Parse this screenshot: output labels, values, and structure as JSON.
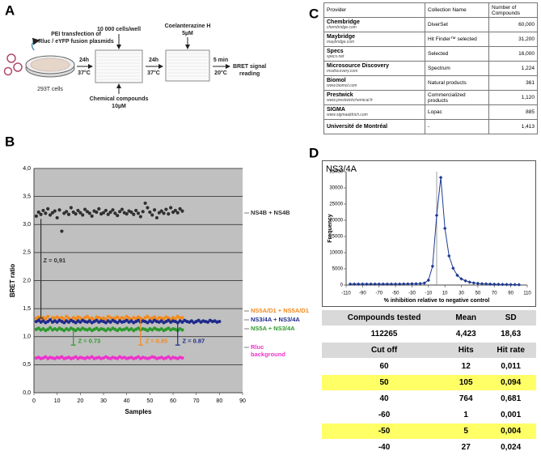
{
  "panels": {
    "a": "A",
    "b": "B",
    "c": "C",
    "d": "D"
  },
  "panel_a": {
    "transfection_1": "PEI transfection of",
    "transfection_2": "Rluc / eYFP fusion plasmids",
    "cells": "293T cells",
    "incubation_1_time": "24h",
    "incubation_1_temp": "37°C",
    "seeding": "10 000 cells/well",
    "compounds": "Chemical compounds",
    "compounds_conc": "10µM",
    "incubation_2_time": "24h",
    "incubation_2_temp": "37°C",
    "substrate": "Coelanterazine H",
    "substrate_conc": "5µM",
    "reading_time": "5 min",
    "reading_temp": "20°C",
    "reading_1": "BRET signal",
    "reading_2": "reading"
  },
  "chart_data": [
    {
      "type": "scatter",
      "xlabel": "Samples",
      "ylabel": "BRET ratio",
      "plot_background": "#c0c0c0",
      "grid": true,
      "legend": "right",
      "xlim": [
        0,
        90
      ],
      "xticks": [
        0,
        10,
        20,
        30,
        40,
        50,
        60,
        70,
        80,
        90
      ],
      "ylim": [
        0,
        4
      ],
      "yticks": [
        {
          "value": 0,
          "label": "0,0"
        },
        {
          "value": 0.5,
          "label": "0,5"
        },
        {
          "value": 1,
          "label": "1,0"
        },
        {
          "value": 1.5,
          "label": "1,5"
        },
        {
          "value": 2,
          "label": "2,0"
        },
        {
          "value": 2.5,
          "label": "2,5"
        },
        {
          "value": 3,
          "label": "3,0"
        },
        {
          "value": 3.5,
          "label": "3,5"
        },
        {
          "value": 4,
          "label": "4,0"
        }
      ],
      "x": [
        1,
        2,
        3,
        4,
        5,
        6,
        7,
        8,
        9,
        10,
        11,
        12,
        13,
        14,
        15,
        16,
        17,
        18,
        19,
        20,
        21,
        22,
        23,
        24,
        25,
        26,
        27,
        28,
        29,
        30,
        31,
        32,
        33,
        34,
        35,
        36,
        37,
        38,
        39,
        40,
        41,
        42,
        43,
        44,
        45,
        46,
        47,
        48,
        49,
        50,
        51,
        52,
        53,
        54,
        55,
        56,
        57,
        58,
        59,
        60,
        61,
        62,
        63,
        64,
        65,
        66,
        67,
        68,
        69,
        70,
        71,
        72,
        73,
        74,
        75,
        76,
        77,
        78,
        79,
        80
      ],
      "series": [
        {
          "name": "NS4B + NS4B",
          "color": "#303030",
          "values": [
            3.15,
            3.22,
            3.18,
            3.25,
            3.2,
            3.28,
            3.17,
            3.21,
            3.24,
            3.12,
            3.26,
            2.88,
            3.2,
            3.23,
            3.18,
            3.3,
            3.22,
            3.19,
            3.25,
            3.21,
            3.17,
            3.27,
            3.23,
            3.2,
            3.15,
            3.24,
            3.22,
            3.28,
            3.19,
            3.21,
            3.25,
            3.18,
            3.22,
            3.26,
            3.2,
            3.16,
            3.23,
            3.27,
            3.21,
            3.19,
            3.24,
            3.22,
            3.18,
            3.25,
            3.2,
            3.14,
            3.23,
            3.38,
            3.3,
            3.22,
            3.17,
            3.26,
            3.12,
            3.21,
            3.24,
            3.2,
            3.27,
            3.19,
            3.3,
            3.22,
            3.25,
            3.21,
            3.28,
            3.24,
            null,
            null,
            null,
            null,
            null,
            null,
            null,
            null,
            null,
            null,
            null,
            null,
            null,
            null,
            null,
            null
          ]
        },
        {
          "name": "NS5A/D1 + NS5A/D1",
          "color": "#f28a1e",
          "values": [
            1.33,
            1.35,
            1.31,
            1.34,
            1.32,
            1.36,
            1.3,
            1.34,
            1.33,
            1.35,
            1.32,
            1.34,
            1.31,
            1.36,
            1.33,
            1.3,
            1.34,
            1.32,
            1.35,
            1.33,
            1.31,
            1.34,
            1.36,
            1.32,
            1.33,
            1.3,
            1.35,
            1.34,
            1.32,
            1.33,
            1.31,
            1.36,
            1.34,
            1.32,
            1.33,
            1.35,
            1.31,
            1.34,
            1.32,
            1.36,
            1.33,
            1.31,
            1.34,
            1.32,
            1.35,
            1.33,
            1.3,
            1.34,
            1.36,
            1.32,
            1.33,
            1.35,
            1.31,
            1.34,
            1.33,
            1.32,
            1.35,
            1.33,
            1.31,
            1.34,
            1.32,
            1.36,
            1.33,
            1.34,
            null,
            null,
            null,
            null,
            null,
            null,
            null,
            null,
            null,
            null,
            null,
            null,
            null,
            null,
            null,
            null
          ]
        },
        {
          "name": "NS3/4A + NS3/4A",
          "color": "#1f2a8c",
          "values": [
            1.27,
            1.29,
            1.26,
            1.28,
            1.25,
            1.27,
            1.3,
            1.26,
            1.28,
            1.26,
            1.29,
            1.27,
            1.25,
            1.28,
            1.26,
            1.29,
            1.27,
            1.25,
            1.28,
            1.26,
            1.29,
            1.27,
            1.26,
            1.28,
            1.25,
            1.27,
            1.29,
            1.26,
            1.28,
            1.27,
            1.25,
            1.28,
            1.26,
            1.29,
            1.27,
            1.25,
            1.28,
            1.26,
            1.27,
            1.29,
            1.26,
            1.28,
            1.25,
            1.27,
            1.29,
            1.26,
            1.28,
            1.27,
            1.25,
            1.28,
            1.26,
            1.29,
            1.27,
            1.26,
            1.28,
            1.25,
            1.27,
            1.29,
            1.26,
            1.28,
            1.27,
            1.25,
            1.28,
            1.26,
            1.29,
            1.27,
            1.26,
            1.28,
            1.25,
            1.27,
            1.29,
            1.26,
            1.28,
            1.27,
            1.26,
            1.29,
            1.27,
            1.28,
            1.26,
            1.27
          ]
        },
        {
          "name": "NS5A + NS3/4A",
          "color": "#2e9a2e",
          "values": [
            1.13,
            1.15,
            1.12,
            1.14,
            1.11,
            1.13,
            1.16,
            1.12,
            1.14,
            1.12,
            1.15,
            1.13,
            1.11,
            1.14,
            1.12,
            1.15,
            1.13,
            1.11,
            1.14,
            1.12,
            1.15,
            1.13,
            1.12,
            1.14,
            1.11,
            1.13,
            1.15,
            1.12,
            1.14,
            1.13,
            1.11,
            1.14,
            1.12,
            1.15,
            1.13,
            1.11,
            1.14,
            1.12,
            1.13,
            1.15,
            1.12,
            1.14,
            1.11,
            1.13,
            1.15,
            1.12,
            1.14,
            1.13,
            1.11,
            1.14,
            1.12,
            1.15,
            1.13,
            1.12,
            1.14,
            1.11,
            1.13,
            1.15,
            1.12,
            1.14,
            1.13,
            1.11,
            1.14,
            1.12,
            null,
            null,
            null,
            null,
            null,
            null,
            null,
            null,
            null,
            null,
            null,
            null,
            null,
            null,
            null,
            null
          ]
        },
        {
          "name": "Rluc background",
          "color": "#ee33cc",
          "values": [
            0.62,
            0.63,
            0.61,
            0.62,
            0.64,
            0.61,
            0.63,
            0.62,
            0.61,
            0.63,
            0.62,
            0.64,
            0.61,
            0.62,
            0.63,
            0.61,
            0.62,
            0.64,
            0.61,
            0.63,
            0.62,
            0.61,
            0.63,
            0.62,
            0.64,
            0.61,
            0.62,
            0.63,
            0.61,
            0.62,
            0.64,
            0.62,
            0.61,
            0.63,
            0.62,
            0.61,
            0.64,
            0.62,
            0.63,
            0.61,
            0.62,
            0.63,
            0.61,
            0.62,
            0.64,
            0.61,
            0.63,
            0.62,
            0.61,
            0.62,
            0.64,
            0.63,
            0.61,
            0.62,
            0.63,
            0.61,
            0.62,
            0.64,
            0.61,
            0.63,
            0.62,
            0.61,
            0.63,
            0.62,
            null,
            null,
            null,
            null,
            null,
            null,
            null,
            null,
            null,
            null,
            null,
            null,
            null,
            null,
            null,
            null
          ]
        }
      ],
      "annotations": [
        {
          "text": "Z = 0,91",
          "color": "#303030"
        },
        {
          "text": "Z = 0.73",
          "color": "#2e9a2e"
        },
        {
          "text": "Z = 0.85",
          "color": "#f28a1e"
        },
        {
          "text": "Z = 0.87",
          "color": "#1f2a8c"
        }
      ]
    },
    {
      "type": "line",
      "title": "NS3/4A",
      "xlabel": "% inhibition relative to negative control",
      "ylabel": "Frequency",
      "plot_background": "#ffffff",
      "grid": false,
      "color": "#1f3a93",
      "xlim": [
        -110,
        110
      ],
      "xticks": [
        -110,
        -90,
        -70,
        -50,
        -30,
        -10,
        10,
        30,
        50,
        70,
        90,
        110
      ],
      "ylim": [
        0,
        35000
      ],
      "yticks": [
        0,
        5000,
        10000,
        15000,
        20000,
        25000,
        30000,
        35000
      ],
      "x": [
        -105,
        -100,
        -95,
        -90,
        -85,
        -80,
        -75,
        -70,
        -65,
        -60,
        -55,
        -50,
        -45,
        -40,
        -35,
        -30,
        -25,
        -20,
        -15,
        -10,
        -5,
        0,
        5,
        10,
        15,
        20,
        25,
        30,
        35,
        40,
        45,
        50,
        55,
        60,
        65,
        70,
        75,
        80,
        85,
        90,
        95,
        100
      ],
      "values": [
        300,
        300,
        300,
        300,
        300,
        300,
        300,
        300,
        300,
        300,
        300,
        300,
        300,
        350,
        350,
        400,
        400,
        450,
        600,
        1500,
        5800,
        21500,
        33200,
        17500,
        9000,
        5200,
        3000,
        1900,
        1300,
        900,
        650,
        500,
        400,
        350,
        300,
        250,
        220,
        200,
        180,
        150,
        130,
        120
      ]
    }
  ],
  "table_c": {
    "header": [
      "Provider",
      "Collection Name",
      "Number of Compounds"
    ],
    "rows": [
      {
        "provider": "Chembridge",
        "url": "chembridge.com",
        "collection": "DiverSet",
        "number": "60,000"
      },
      {
        "provider": "Maybridge",
        "url": "maybridge.com",
        "collection": "Hit Finder™ selected",
        "number": "31,200"
      },
      {
        "provider": "Specs",
        "url": "specs.net",
        "collection": "Selected",
        "number": "16,000"
      },
      {
        "provider": "Microsource Discovery",
        "url": "msdiscovery.com",
        "collection": "Spectrum",
        "number": "1,224"
      },
      {
        "provider": "Biomol",
        "url": "www.biomol.com",
        "collection": "Natural products",
        "number": "361"
      },
      {
        "provider": "Prestwick",
        "url": "www.prestwickchemical.fr",
        "collection": "Commercialized products",
        "number": "1,120"
      },
      {
        "provider": "SIGMA",
        "url": "www.sigmaaldrich.com",
        "collection": "Lopac",
        "number": "885"
      },
      {
        "provider": "Université de Montréal",
        "collection": "-",
        "number": "1,413"
      }
    ]
  },
  "table_d": {
    "summary_header": [
      "Compounds tested",
      "Mean",
      "SD"
    ],
    "summary_row": [
      "112265",
      "4,423",
      "18,63"
    ],
    "cutoff_header": [
      "Cut off",
      "Hits",
      "Hit rate"
    ],
    "rows": [
      {
        "cells": [
          "60",
          "12",
          "0,011"
        ],
        "highlight": false
      },
      {
        "cells": [
          "50",
          "105",
          "0,094"
        ],
        "highlight": true
      },
      {
        "cells": [
          "40",
          "764",
          "0,681"
        ],
        "highlight": false
      },
      {
        "cells": [
          "-60",
          "1",
          "0,001"
        ],
        "highlight": false
      },
      {
        "cells": [
          "-50",
          "5",
          "0,004"
        ],
        "highlight": true
      },
      {
        "cells": [
          "-40",
          "27",
          "0,024"
        ],
        "highlight": false
      }
    ]
  }
}
